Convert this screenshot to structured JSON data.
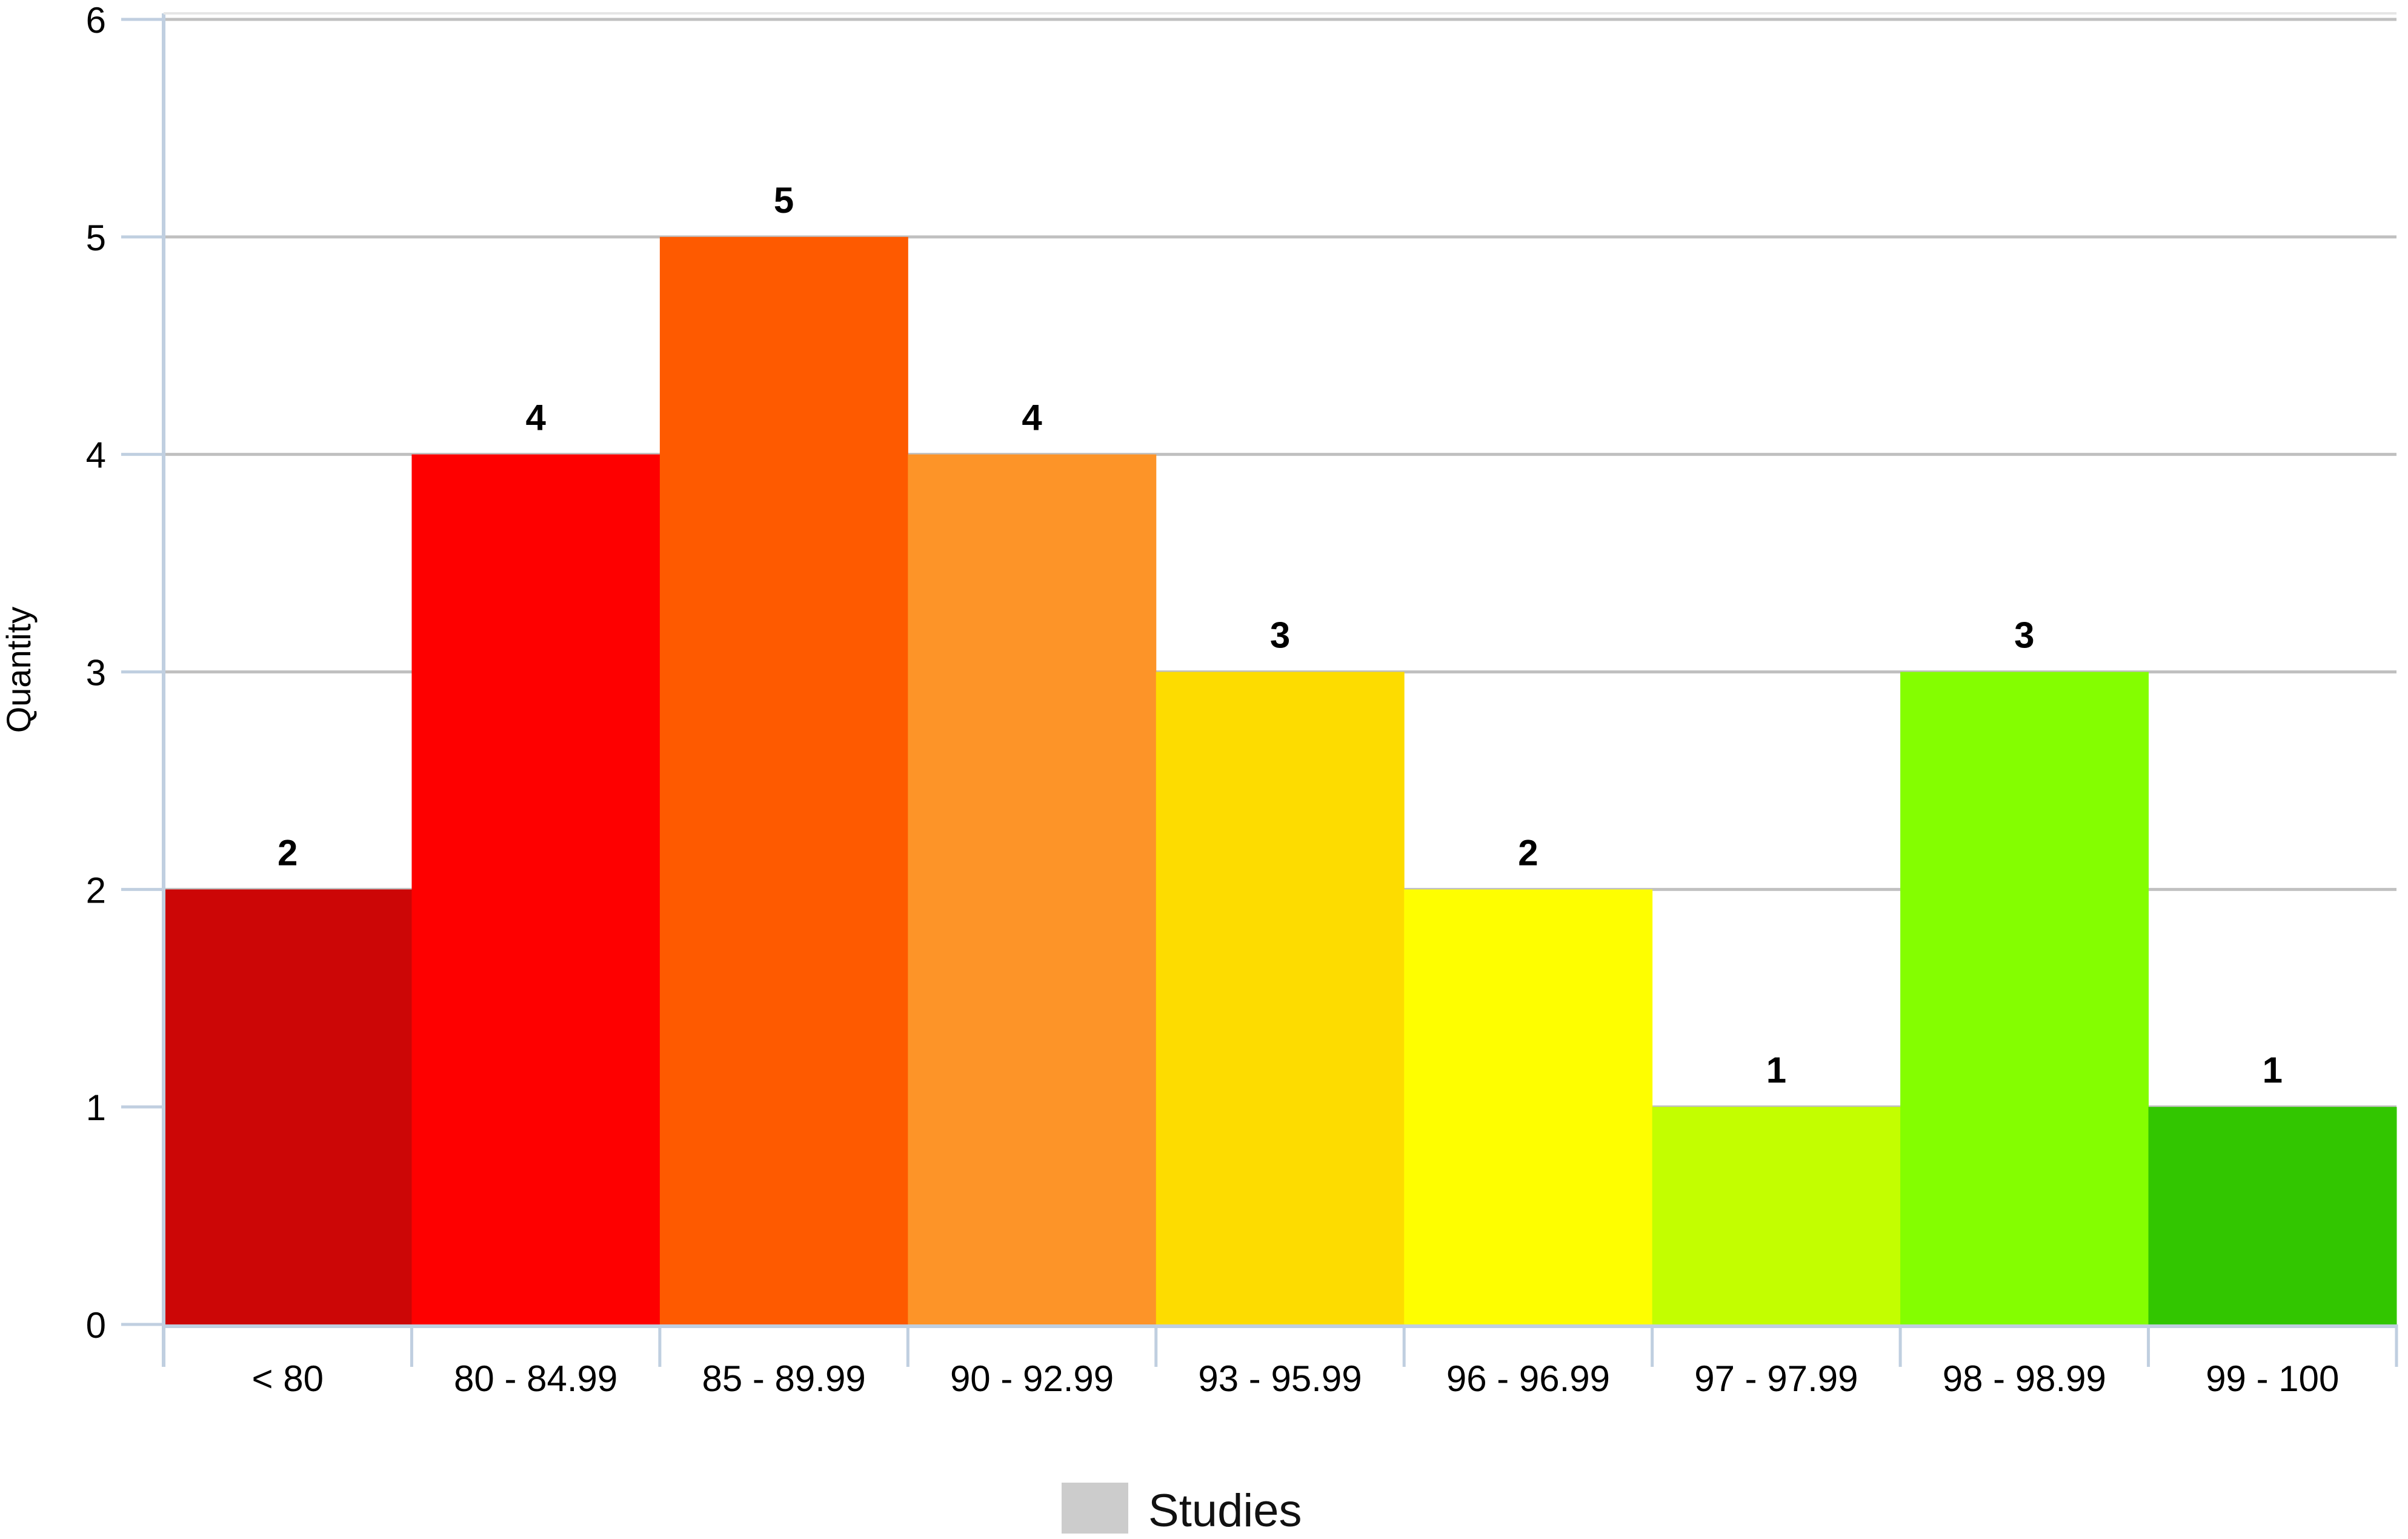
{
  "chart_data": {
    "type": "bar",
    "title": "",
    "xlabel": "",
    "ylabel": "Quantity",
    "ylim": [
      0,
      6
    ],
    "yticks": [
      0,
      1,
      2,
      3,
      4,
      5,
      6
    ],
    "grid": true,
    "legend_position": "bottom-center",
    "categories": [
      "< 80",
      "80 - 84.99",
      "85 - 89.99",
      "90 - 92.99",
      "93 - 95.99",
      "96 - 96.99",
      "97 - 97.99",
      "98 - 98.99",
      "99 - 100"
    ],
    "series": [
      {
        "name": "Studies",
        "values": [
          2,
          4,
          5,
          4,
          3,
          2,
          1,
          3,
          1
        ],
        "colors": [
          "#cc0606",
          "#fe0000",
          "#fe5a00",
          "#fd9428",
          "#fddc00",
          "#fefe00",
          "#c3fe00",
          "#84fe00",
          "#32c600"
        ],
        "legend_color": "#cccccc"
      }
    ],
    "data_labels": [
      "2",
      "4",
      "5",
      "4",
      "3",
      "2",
      "1",
      "3",
      "1"
    ]
  }
}
